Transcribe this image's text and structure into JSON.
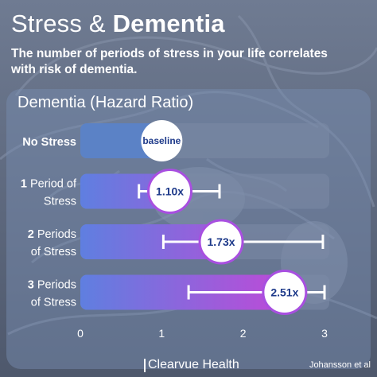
{
  "header": {
    "title_part1": "Stress & ",
    "title_part2": "Dementia",
    "subtitle_line1": "The number of periods of stress in your life correlates",
    "subtitle_line2": "with risk of dementia."
  },
  "footer": {
    "brand": "Clearvue Health",
    "credit": "Johansson et al"
  },
  "colors": {
    "track": "#7b8aa6",
    "bar_no_stress": "#5b82c6",
    "gradient_start": "#5f7fe0",
    "gradient_end": "#d13fd6",
    "error_bar": "#ffffff",
    "badge_fill": "#ffffff",
    "badge_ring": "#a84fe0",
    "badge_text": "#1e3a8a"
  },
  "chart_data": {
    "type": "bar",
    "orientation": "horizontal",
    "title": "Dementia (Hazard Ratio)",
    "categories": [
      [
        "No Stress"
      ],
      [
        "1 Period of",
        "Stress"
      ],
      [
        "2 Periods",
        "of Stress"
      ],
      [
        "3 Periods",
        "of Stress"
      ]
    ],
    "category_bold_prefix": [
      "No Stress",
      "1",
      "2",
      "3"
    ],
    "values": [
      1.0,
      1.1,
      1.73,
      2.51
    ],
    "value_labels": [
      "baseline",
      "1.10x",
      "1.73x",
      "2.51x"
    ],
    "ci_low": [
      null,
      0.72,
      1.02,
      1.33
    ],
    "ci_high": [
      null,
      1.71,
      2.98,
      3.0
    ],
    "xlim": [
      0,
      3
    ],
    "xticks": [
      0,
      1,
      2,
      3
    ],
    "xlabel": "",
    "grid": false,
    "legend": "none"
  }
}
